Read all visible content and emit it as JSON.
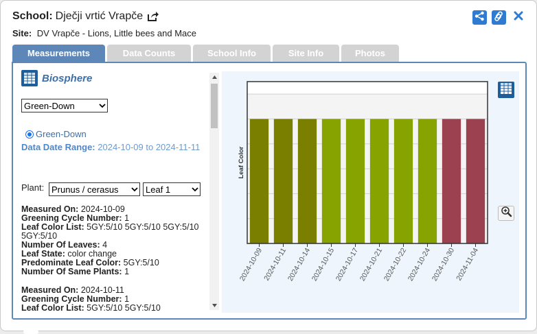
{
  "header": {
    "school_label": "School:",
    "school_name": "Dječji vrtić Vrapče",
    "site_label": "Site:",
    "site_name": "DV Vrapče - Lions, Little bees and Mace"
  },
  "tabs": [
    {
      "label": "Measurements",
      "active": true
    },
    {
      "label": "Data Counts",
      "active": false
    },
    {
      "label": "School Info",
      "active": false
    },
    {
      "label": "Site Info",
      "active": false
    },
    {
      "label": "Photos",
      "active": false
    }
  ],
  "left": {
    "protocol_title": "Biosphere",
    "protocol_select": "Green-Down",
    "radio_label": "Green-Down",
    "date_range_label": "Data Date Range:",
    "date_range_value": "2024-10-09 to 2024-11-11",
    "plant_label": "Plant:",
    "plant_select": "Prunus / cerasus",
    "leaf_select": "Leaf 1",
    "measurements": [
      {
        "measured_on_label": "Measured On:",
        "measured_on": "2024-10-09",
        "greening_label": "Greening Cycle Number:",
        "greening": "1",
        "leaf_color_list_label": "Leaf Color List:",
        "leaf_color_list": "5GY:5/10 5GY:5/10 5GY:5/10 5GY:5/10",
        "num_leaves_label": "Number Of Leaves:",
        "num_leaves": "4",
        "leaf_state_label": "Leaf State:",
        "leaf_state": "color change",
        "predominate_label": "Predominate Leaf Color:",
        "predominate": "5GY:5/10",
        "same_plants_label": "Number Of Same Plants:",
        "same_plants": "1"
      },
      {
        "measured_on_label": "Measured On:",
        "measured_on": "2024-10-11",
        "greening_label": "Greening Cycle Number:",
        "greening": "1",
        "leaf_color_list_label": "Leaf Color List:",
        "leaf_color_list": "5GY:5/10 5GY:5/10"
      }
    ]
  },
  "chart_data": {
    "type": "bar",
    "ylabel": "Leaf Color",
    "categories": [
      "2024-10-09",
      "2024-10-11",
      "2024-10-14",
      "2024-10-15",
      "2024-10-17",
      "2024-10-21",
      "2024-10-22",
      "2024-10-24",
      "2024-10-30",
      "2024-11-04"
    ],
    "values": [
      1,
      1,
      1,
      1,
      1,
      1,
      1,
      1,
      1,
      1
    ],
    "bar_colors": [
      "#7a7f00",
      "#7a7f00",
      "#7a7f00",
      "#86a300",
      "#86a300",
      "#86a300",
      "#86a300",
      "#86a300",
      "#9c4150",
      "#9c4150"
    ],
    "ylim": [
      0,
      1.3
    ],
    "grid": true,
    "legend": "none"
  },
  "colors": {
    "accent": "#5d87b8",
    "button_blue": "#2e7bd1",
    "title_blue": "#3d6fa8"
  },
  "icons": {
    "external": "external-link-icon",
    "share": "share-icon",
    "link": "link-icon",
    "close": "close-icon",
    "table": "table-icon",
    "zoom": "zoom-in-icon"
  }
}
